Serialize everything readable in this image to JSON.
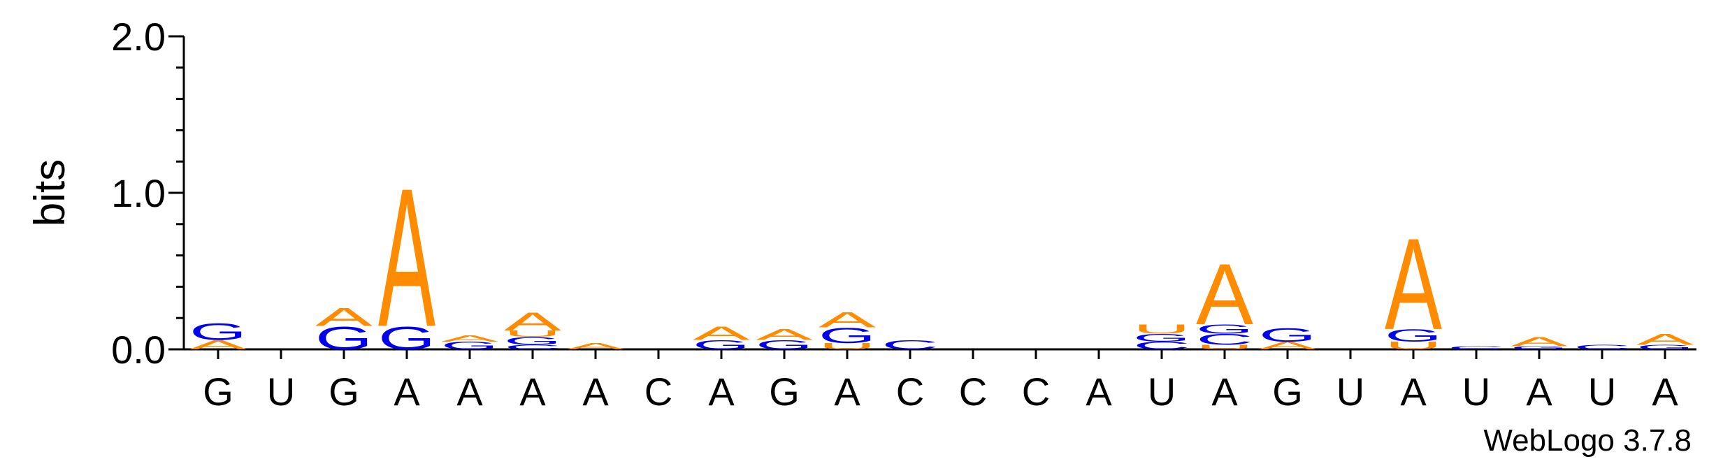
{
  "chart_data": {
    "type": "logo",
    "ylabel": "bits",
    "footer": "WebLogo 3.7.8",
    "ylim": [
      0,
      2
    ],
    "yticks": [
      {
        "value": 0,
        "label": "0.0"
      },
      {
        "value": 1,
        "label": "1.0"
      },
      {
        "value": 2,
        "label": "2.0"
      }
    ],
    "yminorticks": [
      0.2,
      0.4,
      0.6,
      0.8,
      1.2,
      1.4,
      1.6,
      1.8
    ],
    "colors": {
      "A": "#ff8c00",
      "U": "#ff8c00",
      "G": "#0000ee",
      "C": "#0000ee"
    },
    "categories": [
      "G",
      "U",
      "G",
      "A",
      "A",
      "A",
      "A",
      "C",
      "A",
      "G",
      "A",
      "C",
      "C",
      "C",
      "A",
      "U",
      "A",
      "G",
      "U",
      "A",
      "U",
      "A",
      "U",
      "A"
    ],
    "stacks": [
      {
        "letters": [
          "A",
          "G"
        ],
        "values": [
          0.06,
          0.11
        ]
      },
      {
        "letters": [],
        "values": []
      },
      {
        "letters": [
          "G",
          "A"
        ],
        "values": [
          0.15,
          0.12
        ]
      },
      {
        "letters": [
          "G",
          "A"
        ],
        "values": [
          0.15,
          0.91
        ]
      },
      {
        "letters": [
          "G",
          "A"
        ],
        "values": [
          0.05,
          0.04
        ]
      },
      {
        "letters": [
          "C",
          "G",
          "U",
          "A"
        ],
        "values": [
          0.03,
          0.05,
          0.04,
          0.12
        ]
      },
      {
        "letters": [
          "A"
        ],
        "values": [
          0.04
        ]
      },
      {
        "letters": [],
        "values": []
      },
      {
        "letters": [
          "G",
          "A"
        ],
        "values": [
          0.06,
          0.09
        ]
      },
      {
        "letters": [
          "G",
          "A"
        ],
        "values": [
          0.06,
          0.07
        ]
      },
      {
        "letters": [
          "U",
          "G",
          "A"
        ],
        "values": [
          0.04,
          0.1,
          0.1
        ]
      },
      {
        "letters": [
          "C"
        ],
        "values": [
          0.06
        ]
      },
      {
        "letters": [],
        "values": []
      },
      {
        "letters": [],
        "values": []
      },
      {
        "letters": [],
        "values": []
      },
      {
        "letters": [
          "C",
          "G",
          "U"
        ],
        "values": [
          0.05,
          0.05,
          0.06
        ]
      },
      {
        "letters": [
          "U",
          "C",
          "G",
          "A"
        ],
        "values": [
          0.03,
          0.07,
          0.06,
          0.4
        ]
      },
      {
        "letters": [
          "A",
          "G"
        ],
        "values": [
          0.05,
          0.09
        ]
      },
      {
        "letters": [],
        "values": []
      },
      {
        "letters": [
          "U",
          "G",
          "A"
        ],
        "values": [
          0.05,
          0.08,
          0.6
        ]
      },
      {
        "letters": [
          "C"
        ],
        "values": [
          0.02
        ]
      },
      {
        "letters": [
          "G",
          "A"
        ],
        "values": [
          0.02,
          0.06
        ]
      },
      {
        "letters": [
          "C"
        ],
        "values": [
          0.03
        ]
      },
      {
        "letters": [
          "G",
          "A"
        ],
        "values": [
          0.03,
          0.07
        ]
      }
    ]
  }
}
